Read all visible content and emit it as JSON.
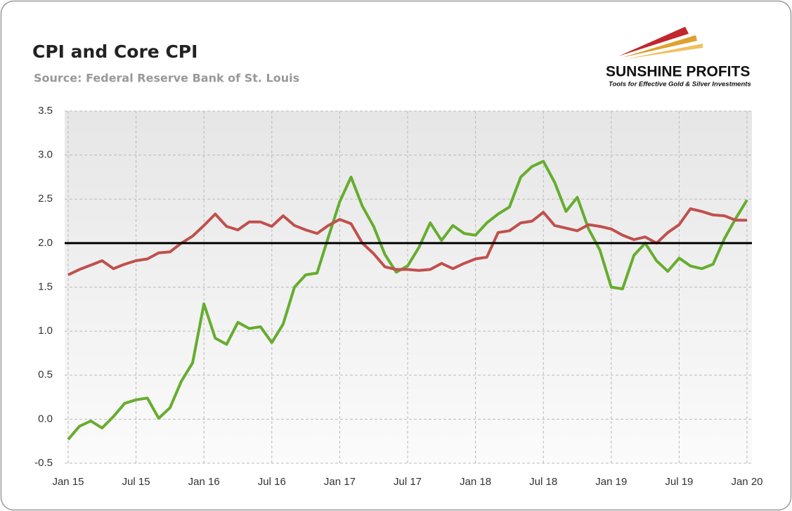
{
  "logo": {
    "name": "SUNSHINE PROFITS",
    "tagline": "Tools for Effective Gold & Silver Investments"
  },
  "chart_data": {
    "type": "line",
    "title": "CPI and Core CPI",
    "subtitle": "Source: Federal Reserve Bank of St. Louis",
    "categories": [
      "Jan 15",
      null,
      null,
      null,
      null,
      null,
      "Jul 15",
      null,
      null,
      null,
      null,
      null,
      "Jan 16",
      null,
      null,
      null,
      null,
      null,
      "Jul 16",
      null,
      null,
      null,
      null,
      null,
      "Jan 17",
      null,
      null,
      null,
      null,
      null,
      "Jul 17",
      null,
      null,
      null,
      null,
      null,
      "Jan 18",
      null,
      null,
      null,
      null,
      null,
      "Jul 18",
      null,
      null,
      null,
      null,
      null,
      "Jan 19",
      null,
      null,
      null,
      null,
      null,
      "Jul 19",
      null,
      null,
      null,
      null,
      null,
      "Jan 20"
    ],
    "series": [
      {
        "color": "#66ad2f",
        "values": [
          -0.23,
          -0.08,
          -0.02,
          -0.1,
          0.03,
          0.18,
          0.22,
          0.24,
          0.01,
          0.13,
          0.43,
          0.64,
          1.31,
          0.92,
          0.85,
          1.1,
          1.03,
          1.05,
          0.87,
          1.08,
          1.5,
          1.64,
          1.66,
          2.07,
          2.47,
          2.75,
          2.42,
          2.19,
          1.87,
          1.67,
          1.74,
          1.95,
          2.23,
          2.03,
          2.2,
          2.11,
          2.09,
          2.23,
          2.33,
          2.41,
          2.75,
          2.87,
          2.93,
          2.69,
          2.36,
          2.52,
          2.16,
          1.92,
          1.5,
          1.48,
          1.86,
          2.0,
          1.8,
          1.68,
          1.83,
          1.74,
          1.71,
          1.76,
          2.05,
          2.28,
          2.49
        ]
      },
      {
        "color": "#c0504d",
        "values": [
          1.64,
          1.7,
          1.75,
          1.8,
          1.71,
          1.76,
          1.8,
          1.82,
          1.89,
          1.9,
          2.0,
          2.08,
          2.2,
          2.33,
          2.19,
          2.15,
          2.24,
          2.24,
          2.19,
          2.31,
          2.2,
          2.15,
          2.11,
          2.2,
          2.27,
          2.22,
          2.0,
          1.88,
          1.73,
          1.7,
          1.7,
          1.69,
          1.7,
          1.77,
          1.71,
          1.77,
          1.82,
          1.84,
          2.12,
          2.14,
          2.23,
          2.25,
          2.35,
          2.2,
          2.17,
          2.14,
          2.21,
          2.19,
          2.16,
          2.09,
          2.04,
          2.07,
          2.0,
          2.12,
          2.21,
          2.39,
          2.36,
          2.32,
          2.31,
          2.26,
          2.26
        ]
      }
    ],
    "reference_line": {
      "value": 2,
      "color": "#000000"
    },
    "ylim": [
      -0.5,
      3.5
    ],
    "yticks": [
      -0.5,
      {
        "value": 0,
        "label": "0.0"
      },
      0.5,
      {
        "value": 1,
        "label": "1.0"
      },
      1.5,
      {
        "value": 2,
        "label": "2.0"
      },
      2.5,
      {
        "value": 3,
        "label": "3.0"
      },
      3.5
    ],
    "grid": true
  }
}
